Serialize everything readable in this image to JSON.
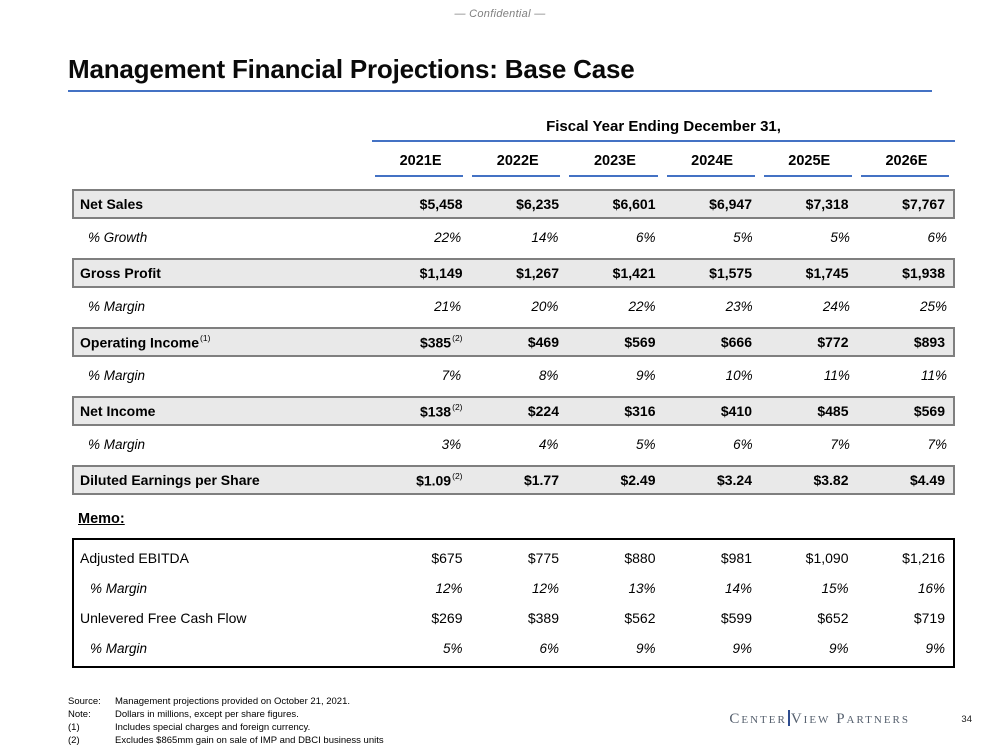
{
  "page": {
    "confidential": "— Confidential —",
    "title": "Management Financial Projections: Base Case",
    "page_number": "34"
  },
  "colors": {
    "accent_blue": "#4472C4",
    "box_border": "#7f7f7f",
    "box_fill": "#e9e9e9",
    "muted_gray": "#808080",
    "logo_gray": "#56606e",
    "logo_bar_blue": "#2f4d8f"
  },
  "table": {
    "group_header": "Fiscal Year Ending December 31,",
    "columns": [
      "2021E",
      "2022E",
      "2023E",
      "2024E",
      "2025E",
      "2026E"
    ],
    "rows": [
      {
        "label": "Net Sales",
        "style": "boxed",
        "values": [
          "$5,458",
          "$6,235",
          "$6,601",
          "$6,947",
          "$7,318",
          "$7,767"
        ]
      },
      {
        "label": "% Growth",
        "style": "italic",
        "values": [
          "22%",
          "14%",
          "6%",
          "5%",
          "5%",
          "6%"
        ]
      },
      {
        "label": "Gross Profit",
        "style": "boxed",
        "values": [
          "$1,149",
          "$1,267",
          "$1,421",
          "$1,575",
          "$1,745",
          "$1,938"
        ]
      },
      {
        "label": "% Margin",
        "style": "italic",
        "values": [
          "21%",
          "20%",
          "22%",
          "23%",
          "24%",
          "25%"
        ]
      },
      {
        "label": "Operating Income",
        "label_sup": "(1)",
        "style": "boxed",
        "values": [
          "$385",
          "$469",
          "$569",
          "$666",
          "$772",
          "$893"
        ],
        "value_sups": {
          "0": "(2)"
        }
      },
      {
        "label": "% Margin",
        "style": "italic",
        "values": [
          "7%",
          "8%",
          "9%",
          "10%",
          "11%",
          "11%"
        ]
      },
      {
        "label": "Net Income",
        "style": "boxed",
        "values": [
          "$138",
          "$224",
          "$316",
          "$410",
          "$485",
          "$569"
        ],
        "value_sups": {
          "0": "(2)"
        }
      },
      {
        "label": "% Margin",
        "style": "italic",
        "values": [
          "3%",
          "4%",
          "5%",
          "6%",
          "7%",
          "7%"
        ]
      },
      {
        "label": "Diluted Earnings per Share",
        "style": "boxed",
        "values": [
          "$1.09",
          "$1.77",
          "$2.49",
          "$3.24",
          "$3.82",
          "$4.49"
        ],
        "value_sups": {
          "0": "(2)"
        }
      }
    ]
  },
  "memo": {
    "label": "Memo:",
    "rows": [
      {
        "label": "Adjusted EBITDA",
        "style": "plain",
        "values": [
          "$675",
          "$775",
          "$880",
          "$981",
          "$1,090",
          "$1,216"
        ]
      },
      {
        "label": "% Margin",
        "style": "mitalic",
        "values": [
          "12%",
          "12%",
          "13%",
          "14%",
          "15%",
          "16%"
        ]
      },
      {
        "label": "Unlevered Free Cash Flow",
        "style": "plain",
        "values": [
          "$269",
          "$389",
          "$562",
          "$599",
          "$652",
          "$719"
        ]
      },
      {
        "label": "% Margin",
        "style": "mitalic",
        "values": [
          "5%",
          "6%",
          "9%",
          "9%",
          "9%",
          "9%"
        ]
      }
    ]
  },
  "footnotes": [
    {
      "label": "Source:",
      "text": "Management projections provided on October 21, 2021."
    },
    {
      "label": "Note:",
      "text": "Dollars in millions, except per share figures."
    },
    {
      "label": "(1)",
      "text": "Includes special charges and foreign currency."
    },
    {
      "label": "(2)",
      "text": "Excludes $865mm gain on sale of IMP and DBCI business units"
    }
  ],
  "logo": {
    "part1": "Center",
    "part2": "View Partners"
  }
}
